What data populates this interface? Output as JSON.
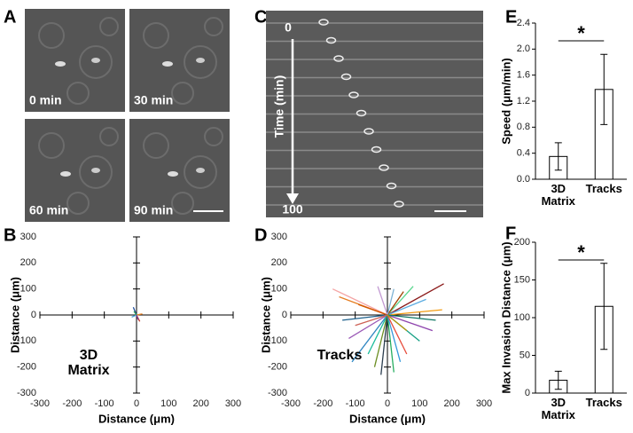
{
  "images": [
    {
      "letter": "A",
      "frames": [
        "0 min",
        "30 min",
        "60 min",
        "90 min"
      ]
    },
    {
      "letter": "C",
      "start": "0",
      "axis_label": "Time (min)",
      "end": "100"
    }
  ],
  "chart_data": [
    {
      "type": "bar",
      "letter": "E",
      "ylabel": "Speed (μm/min)",
      "categories": [
        "3D Matrix",
        "Tracks"
      ],
      "values": [
        0.35,
        1.38
      ],
      "errors": [
        0.21,
        0.54
      ],
      "ylim": [
        0,
        2.4
      ],
      "yticks": [
        {
          "value": 0,
          "label": "0.0"
        },
        {
          "value": 0.4,
          "label": "0.4"
        },
        {
          "value": 0.8,
          "label": "0.8"
        },
        {
          "value": 1.2,
          "label": "1.2"
        },
        {
          "value": 1.6,
          "label": "1.6"
        },
        {
          "value": 2.0,
          "label": "2.0"
        },
        {
          "value": 2.4,
          "label": "2.4"
        }
      ],
      "annotation": "*",
      "color": "#ffffff"
    },
    {
      "type": "bar",
      "letter": "F",
      "ylabel": "Max Invasion Distance (μm)",
      "categories": [
        "3D Matrix",
        "Tracks"
      ],
      "values": [
        17,
        115
      ],
      "errors": [
        12,
        57
      ],
      "ylim": [
        0,
        200
      ],
      "yticks": [
        0,
        50,
        100,
        150,
        200
      ],
      "annotation": "*",
      "color": "#ffffff"
    },
    {
      "type": "line",
      "letter": "B",
      "label": "3D Matrix",
      "xlabel": "Distance (μm)",
      "ylabel": "Distance (μm)",
      "xlim": [
        -300,
        300
      ],
      "ylim": [
        -300,
        300
      ],
      "xticks": [
        -300,
        -200,
        -100,
        0,
        100,
        200,
        300
      ],
      "yticks": [
        -300,
        -200,
        -100,
        0,
        100,
        200,
        300
      ],
      "series": [
        {
          "color": "#1f4e9c",
          "x": [
            0,
            -10
          ],
          "y": [
            0,
            30
          ]
        },
        {
          "color": "#c0392b",
          "x": [
            0,
            10
          ],
          "y": [
            0,
            -25
          ]
        },
        {
          "color": "#e67e22",
          "x": [
            0,
            18
          ],
          "y": [
            0,
            4
          ]
        },
        {
          "color": "#4aa3d9",
          "x": [
            0,
            -15
          ],
          "y": [
            0,
            -8
          ]
        },
        {
          "color": "#7f3f98",
          "x": [
            0,
            5
          ],
          "y": [
            0,
            -18
          ]
        },
        {
          "color": "#2e9e5b",
          "x": [
            0,
            -8
          ],
          "y": [
            0,
            14
          ]
        }
      ]
    },
    {
      "type": "line",
      "letter": "D",
      "label": "Tracks",
      "xlabel": "Distance (μm)",
      "ylabel": "Distance (μm)",
      "xlim": [
        -300,
        300
      ],
      "ylim": [
        -300,
        300
      ],
      "xticks": [
        -300,
        -200,
        -100,
        0,
        100,
        200,
        300
      ],
      "yticks": [
        -300,
        -200,
        -100,
        0,
        100,
        200,
        300
      ],
      "series": [
        {
          "color": "#8b1a1a",
          "x": [
            0,
            175
          ],
          "y": [
            0,
            120
          ]
        },
        {
          "color": "#f4a6a6",
          "x": [
            0,
            -170
          ],
          "y": [
            0,
            100
          ]
        },
        {
          "color": "#e67e22",
          "x": [
            0,
            -150
          ],
          "y": [
            0,
            70
          ]
        },
        {
          "color": "#9b59b6",
          "x": [
            0,
            -120
          ],
          "y": [
            0,
            -90
          ]
        },
        {
          "color": "#2e86c1",
          "x": [
            0,
            -110
          ],
          "y": [
            0,
            -180
          ]
        },
        {
          "color": "#1abc9c",
          "x": [
            0,
            -60
          ],
          "y": [
            0,
            -150
          ]
        },
        {
          "color": "#6b8e23",
          "x": [
            0,
            -40
          ],
          "y": [
            0,
            -200
          ]
        },
        {
          "color": "#2c3e50",
          "x": [
            0,
            -20
          ],
          "y": [
            0,
            -230
          ]
        },
        {
          "color": "#27ae60",
          "x": [
            0,
            20
          ],
          "y": [
            0,
            -220
          ]
        },
        {
          "color": "#3498db",
          "x": [
            0,
            40
          ],
          "y": [
            0,
            -180
          ]
        },
        {
          "color": "#e74c3c",
          "x": [
            0,
            60
          ],
          "y": [
            0,
            -150
          ]
        },
        {
          "color": "#16a085",
          "x": [
            0,
            100
          ],
          "y": [
            0,
            -100
          ]
        },
        {
          "color": "#8e44ad",
          "x": [
            0,
            140
          ],
          "y": [
            0,
            -60
          ]
        },
        {
          "color": "#f39c12",
          "x": [
            0,
            170
          ],
          "y": [
            0,
            20
          ]
        },
        {
          "color": "#5dade2",
          "x": [
            0,
            120
          ],
          "y": [
            0,
            60
          ]
        },
        {
          "color": "#58d68d",
          "x": [
            0,
            80
          ],
          "y": [
            0,
            110
          ]
        },
        {
          "color": "#a04000",
          "x": [
            0,
            50
          ],
          "y": [
            0,
            90
          ]
        },
        {
          "color": "#7fb3d5",
          "x": [
            0,
            20
          ],
          "y": [
            0,
            100
          ]
        },
        {
          "color": "#c39bd3",
          "x": [
            0,
            -30
          ],
          "y": [
            0,
            110
          ]
        },
        {
          "color": "#d35400",
          "x": [
            0,
            -90
          ],
          "y": [
            0,
            40
          ]
        },
        {
          "color": "#1f618d",
          "x": [
            0,
            -140
          ],
          "y": [
            0,
            -20
          ]
        },
        {
          "color": "#cd6155",
          "x": [
            0,
            -100
          ],
          "y": [
            0,
            -40
          ]
        },
        {
          "color": "#117864",
          "x": [
            0,
            150
          ],
          "y": [
            0,
            -20
          ]
        },
        {
          "color": "#b7950b",
          "x": [
            0,
            60
          ],
          "y": [
            0,
            -60
          ]
        }
      ]
    }
  ]
}
